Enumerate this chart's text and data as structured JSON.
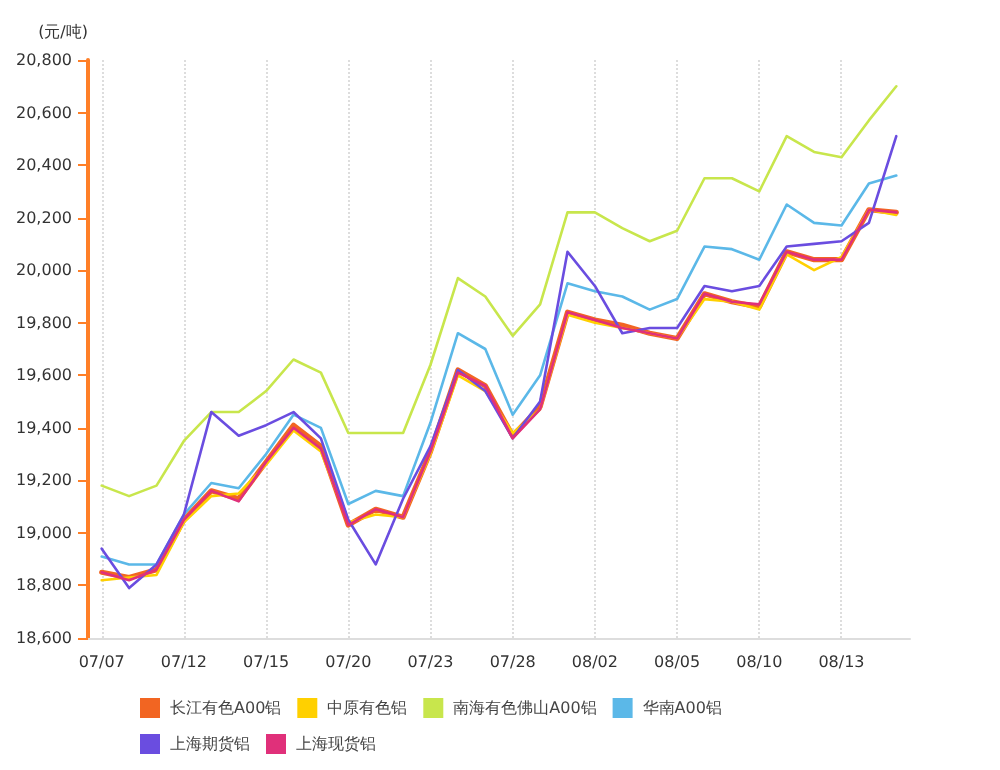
{
  "chart_data": {
    "type": "line",
    "ylabel": "(元/吨)",
    "categories": [
      "07/07",
      null,
      null,
      "07/12",
      null,
      null,
      "07/15",
      null,
      null,
      "07/20",
      null,
      null,
      "07/23",
      null,
      null,
      "07/28",
      null,
      null,
      "08/02",
      null,
      null,
      "08/05",
      null,
      null,
      "08/10",
      null,
      null,
      "08/13",
      null,
      null
    ],
    "series": [
      {
        "name": "长江有色A00铝",
        "color": "#f26522",
        "values": [
          18850,
          18830,
          18860,
          19050,
          19160,
          19130,
          19270,
          19410,
          19330,
          19030,
          19090,
          19060,
          19310,
          19620,
          19560,
          19370,
          19480,
          19840,
          19810,
          19790,
          19760,
          19740,
          19910,
          19880,
          19860,
          20070,
          20040,
          20040,
          20230,
          20220
        ]
      },
      {
        "name": "中原有色铝",
        "color": "#ffd000",
        "values": [
          18820,
          18830,
          18840,
          19040,
          19140,
          19150,
          19260,
          19390,
          19310,
          19040,
          19070,
          19060,
          19300,
          19600,
          19540,
          19380,
          19470,
          19830,
          19800,
          19780,
          19760,
          19740,
          19890,
          19880,
          19850,
          20060,
          20000,
          20050,
          20230,
          20210
        ]
      },
      {
        "name": "南海有色佛山A00铝",
        "color": "#c8e64c",
        "values": [
          19180,
          19140,
          19180,
          19350,
          19460,
          19460,
          19540,
          19660,
          19610,
          19380,
          19380,
          19380,
          19640,
          19970,
          19900,
          19750,
          19870,
          20220,
          20220,
          20160,
          20110,
          20150,
          20350,
          20350,
          20300,
          20510,
          20450,
          20430,
          20570,
          20700
        ]
      },
      {
        "name": "华南A00铝",
        "color": "#5bb8e8",
        "values": [
          18910,
          18880,
          18880,
          19070,
          19190,
          19170,
          19300,
          19450,
          19400,
          19110,
          19160,
          19140,
          19420,
          19760,
          19700,
          19450,
          19600,
          19950,
          19920,
          19900,
          19850,
          19890,
          20090,
          20080,
          20040,
          20250,
          20180,
          20170,
          20330,
          20360
        ]
      },
      {
        "name": "上海期货铝",
        "color": "#6a4de0",
        "values": [
          18940,
          18790,
          18880,
          19070,
          19460,
          19370,
          19410,
          19460,
          19360,
          19050,
          18880,
          19130,
          19330,
          19620,
          19540,
          19360,
          19500,
          20070,
          19940,
          19760,
          19780,
          19780,
          19940,
          19920,
          19940,
          20090,
          20100,
          20110,
          20180,
          20510
        ]
      },
      {
        "name": "上海现货铝",
        "color": "#e0307a",
        "values": [
          18850,
          18820,
          18860,
          19050,
          19160,
          19120,
          19270,
          19400,
          19320,
          19030,
          19090,
          19060,
          19310,
          19610,
          19560,
          19360,
          19470,
          19840,
          19810,
          19780,
          19760,
          19740,
          19910,
          19880,
          19870,
          20070,
          20040,
          20040,
          20230,
          20220
        ]
      }
    ],
    "ylim": [
      18600,
      20800
    ],
    "yticks": [
      {
        "value": 18600,
        "label": "18,600"
      },
      {
        "value": 18800,
        "label": "18,800"
      },
      {
        "value": 19000,
        "label": "19,000"
      },
      {
        "value": 19200,
        "label": "19,200"
      },
      {
        "value": 19400,
        "label": "19,400"
      },
      {
        "value": 19600,
        "label": "19,600"
      },
      {
        "value": 19800,
        "label": "19,800"
      },
      {
        "value": 20000,
        "label": "20,000"
      },
      {
        "value": 20200,
        "label": "20,200"
      },
      {
        "value": 20400,
        "label": "20,400"
      },
      {
        "value": 20600,
        "label": "20,600"
      },
      {
        "value": 20800,
        "label": "20,800"
      }
    ],
    "grid": "x",
    "legend": "bottom",
    "marker": "none",
    "line_style": "solid"
  }
}
